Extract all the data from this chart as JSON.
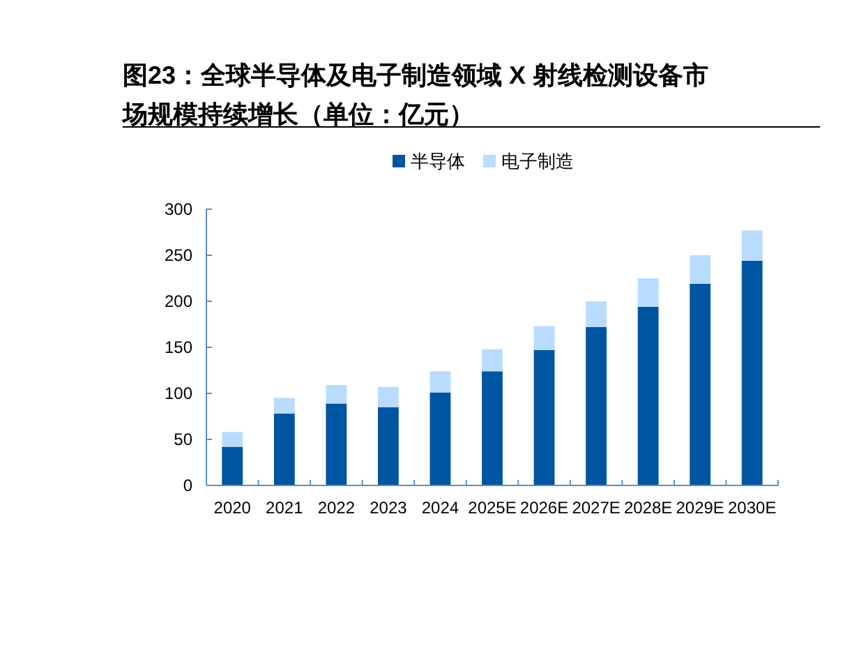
{
  "chart_data": {
    "type": "bar",
    "title": "图23：全球半导体及电子制造领域 X 射线检测设备市场规模持续增长（单位：亿元）",
    "categories": [
      "2020",
      "2021",
      "2022",
      "2023",
      "2024",
      "2025E",
      "2026E",
      "2027E",
      "2028E",
      "2029E",
      "2030E"
    ],
    "stacked": true,
    "series": [
      {
        "name": "半导体",
        "color": "#0055a2",
        "values": [
          42,
          78,
          89,
          85,
          101,
          124,
          147,
          172,
          194,
          219,
          244
        ]
      },
      {
        "name": "电子制造",
        "color": "#b8dcff",
        "values": [
          16,
          17,
          20,
          22,
          23,
          24,
          26,
          28,
          31,
          31,
          33
        ]
      }
    ],
    "ylim": [
      0,
      300
    ],
    "yticks": [
      0,
      50,
      100,
      150,
      200,
      250,
      300
    ],
    "grid": false,
    "legend": "top"
  }
}
